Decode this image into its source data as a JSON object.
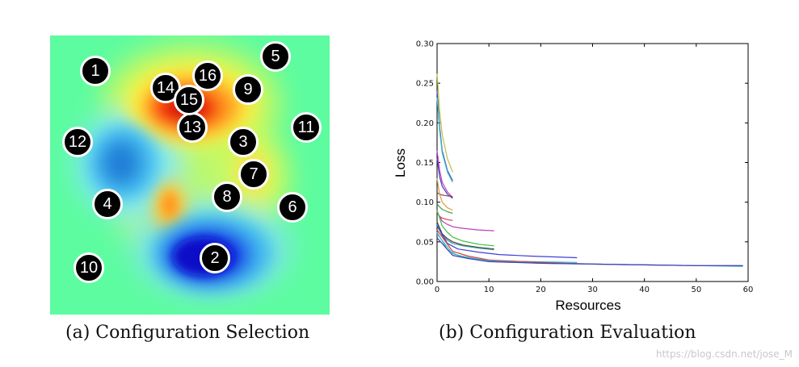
{
  "panel_a": {
    "caption": "(a) Configuration Selection",
    "markers": [
      "1",
      "2",
      "3",
      "4",
      "5",
      "6",
      "7",
      "8",
      "9",
      "10",
      "11",
      "12",
      "13",
      "14",
      "15",
      "16"
    ]
  },
  "panel_b": {
    "caption": "(b) Configuration Evaluation"
  },
  "watermark": "https://blog.csdn.net/jose_M",
  "chart_data": {
    "type": "line",
    "title": "",
    "xlabel": "Resources",
    "ylabel": "Loss",
    "xlim": [
      0,
      60
    ],
    "ylim": [
      0,
      0.3
    ],
    "xticks": [
      "0",
      "10",
      "20",
      "30",
      "40",
      "50",
      "60"
    ],
    "yticks": [
      "0.00",
      "0.05",
      "0.10",
      "0.15",
      "0.20",
      "0.25",
      "0.30"
    ],
    "grid": false,
    "series": [
      {
        "color": "#bfbf3f",
        "x": [
          0,
          0.5,
          1,
          2,
          3
        ],
        "y": [
          0.262,
          0.215,
          0.185,
          0.155,
          0.138
        ]
      },
      {
        "color": "#3f3fd8",
        "x": [
          0,
          0.5,
          1,
          2,
          3
        ],
        "y": [
          0.24,
          0.195,
          0.165,
          0.14,
          0.127
        ]
      },
      {
        "color": "#3fbfbf",
        "x": [
          0,
          0.5,
          1,
          2,
          3
        ],
        "y": [
          0.232,
          0.19,
          0.162,
          0.138,
          0.125
        ]
      },
      {
        "color": "#bf3fbf",
        "x": [
          0,
          0.5,
          1,
          2,
          3
        ],
        "y": [
          0.165,
          0.14,
          0.125,
          0.113,
          0.106
        ]
      },
      {
        "color": "#3f3fbf",
        "x": [
          0,
          0.5,
          1,
          2,
          3
        ],
        "y": [
          0.155,
          0.132,
          0.12,
          0.11,
          0.105
        ]
      },
      {
        "color": "#8b3f3f",
        "x": [
          0,
          0.5,
          1,
          2,
          3
        ],
        "y": [
          0.112,
          0.11,
          0.109,
          0.108,
          0.107
        ]
      },
      {
        "color": "#d8a040",
        "x": [
          0,
          0.5,
          1,
          2,
          3
        ],
        "y": [
          0.13,
          0.11,
          0.1,
          0.093,
          0.09
        ]
      },
      {
        "color": "#3f9f3f",
        "x": [
          0,
          0.5,
          1,
          2,
          3
        ],
        "y": [
          0.098,
          0.094,
          0.091,
          0.088,
          0.086
        ]
      },
      {
        "color": "#d84040",
        "x": [
          0,
          0.5,
          1,
          2,
          3
        ],
        "y": [
          0.087,
          0.082,
          0.08,
          0.078,
          0.077
        ]
      },
      {
        "color": "#bf3fbf",
        "x": [
          0,
          1,
          2,
          3,
          5,
          8,
          11
        ],
        "y": [
          0.088,
          0.076,
          0.072,
          0.069,
          0.067,
          0.065,
          0.064
        ]
      },
      {
        "color": "#3fbf3f",
        "x": [
          0,
          1,
          2,
          3,
          5,
          8,
          11
        ],
        "y": [
          0.09,
          0.07,
          0.062,
          0.056,
          0.051,
          0.047,
          0.045
        ]
      },
      {
        "color": "#3f3f3f",
        "x": [
          0,
          1,
          2,
          3,
          5,
          8,
          11
        ],
        "y": [
          0.075,
          0.06,
          0.054,
          0.05,
          0.046,
          0.043,
          0.041
        ]
      },
      {
        "color": "#3f9f9f",
        "x": [
          0,
          1,
          2,
          3,
          5,
          8,
          11
        ],
        "y": [
          0.072,
          0.058,
          0.052,
          0.048,
          0.045,
          0.042,
          0.04
        ]
      },
      {
        "color": "#3f3fd8",
        "x": [
          0,
          2,
          4,
          8,
          12,
          18,
          27
        ],
        "y": [
          0.07,
          0.048,
          0.041,
          0.037,
          0.034,
          0.032,
          0.03
        ]
      },
      {
        "color": "#3fbfbf",
        "x": [
          0,
          2,
          4,
          8,
          12,
          18,
          27
        ],
        "y": [
          0.062,
          0.04,
          0.033,
          0.028,
          0.026,
          0.025,
          0.024
        ]
      },
      {
        "color": "#d84040",
        "x": [
          0,
          3,
          6,
          10,
          20,
          30,
          40,
          50,
          59
        ],
        "y": [
          0.065,
          0.038,
          0.032,
          0.027,
          0.024,
          0.022,
          0.021,
          0.02,
          0.02
        ]
      },
      {
        "color": "#3fbfbf",
        "x": [
          0,
          3,
          6,
          10,
          20,
          30,
          40,
          50,
          59
        ],
        "y": [
          0.06,
          0.035,
          0.03,
          0.026,
          0.023,
          0.022,
          0.021,
          0.02,
          0.019
        ]
      },
      {
        "color": "#3f3fbf",
        "x": [
          0,
          3,
          6,
          10,
          20,
          30,
          40,
          50,
          59
        ],
        "y": [
          0.055,
          0.033,
          0.029,
          0.025,
          0.023,
          0.022,
          0.021,
          0.02,
          0.02
        ]
      }
    ]
  },
  "colors": {
    "accent_text": "#111111",
    "watermark": "#c8c8c8"
  }
}
